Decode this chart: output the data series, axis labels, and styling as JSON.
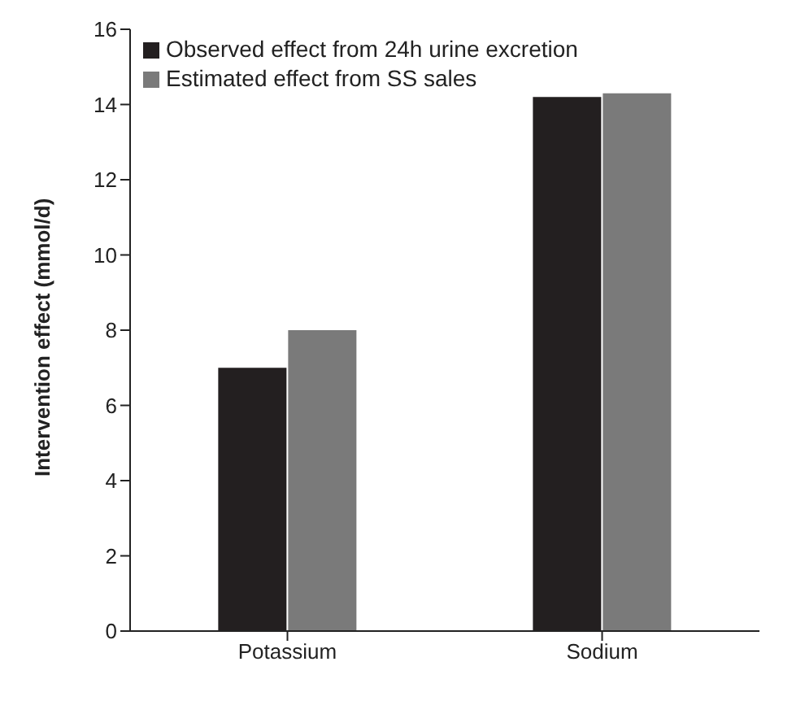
{
  "chart_data": {
    "type": "bar",
    "ylabel": "Intervention effect (mmol/d)",
    "categories": [
      "Potassium",
      "Sodium"
    ],
    "series": [
      {
        "name": "Observed effect from 24h urine excretion",
        "color": "#231f20",
        "values": [
          7.0,
          14.2
        ]
      },
      {
        "name": "Estimated effect from SS sales",
        "color": "#7a7a7a",
        "values": [
          8.0,
          14.3
        ]
      }
    ],
    "ylim": [
      0,
      16
    ],
    "yticks": [
      0,
      2,
      4,
      6,
      8,
      10,
      12,
      14,
      16
    ],
    "grid": false,
    "legend": "top left"
  }
}
